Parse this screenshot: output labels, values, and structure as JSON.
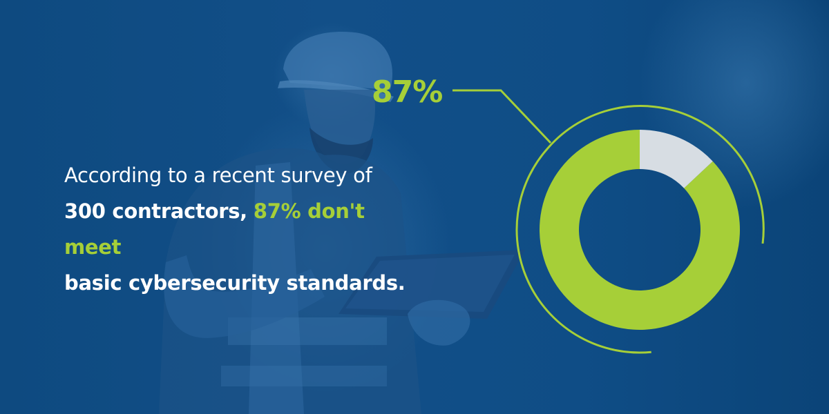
{
  "colors": {
    "background": "#0f4f86",
    "accent": "#a6cf38",
    "remainder": "#d7dde3",
    "text": "#ffffff"
  },
  "headline": {
    "line1": "According to a recent survey of",
    "line2_bold": "300 contractors,",
    "line2_accent": "87% don't meet",
    "line3_bold": "basic cybersecurity standards."
  },
  "chart_data": {
    "type": "pie",
    "labels": [
      "87%"
    ],
    "slices": [
      {
        "value": 87,
        "color": "#a6cf38"
      },
      {
        "value": 13,
        "color": "#d7dde3"
      }
    ]
  }
}
